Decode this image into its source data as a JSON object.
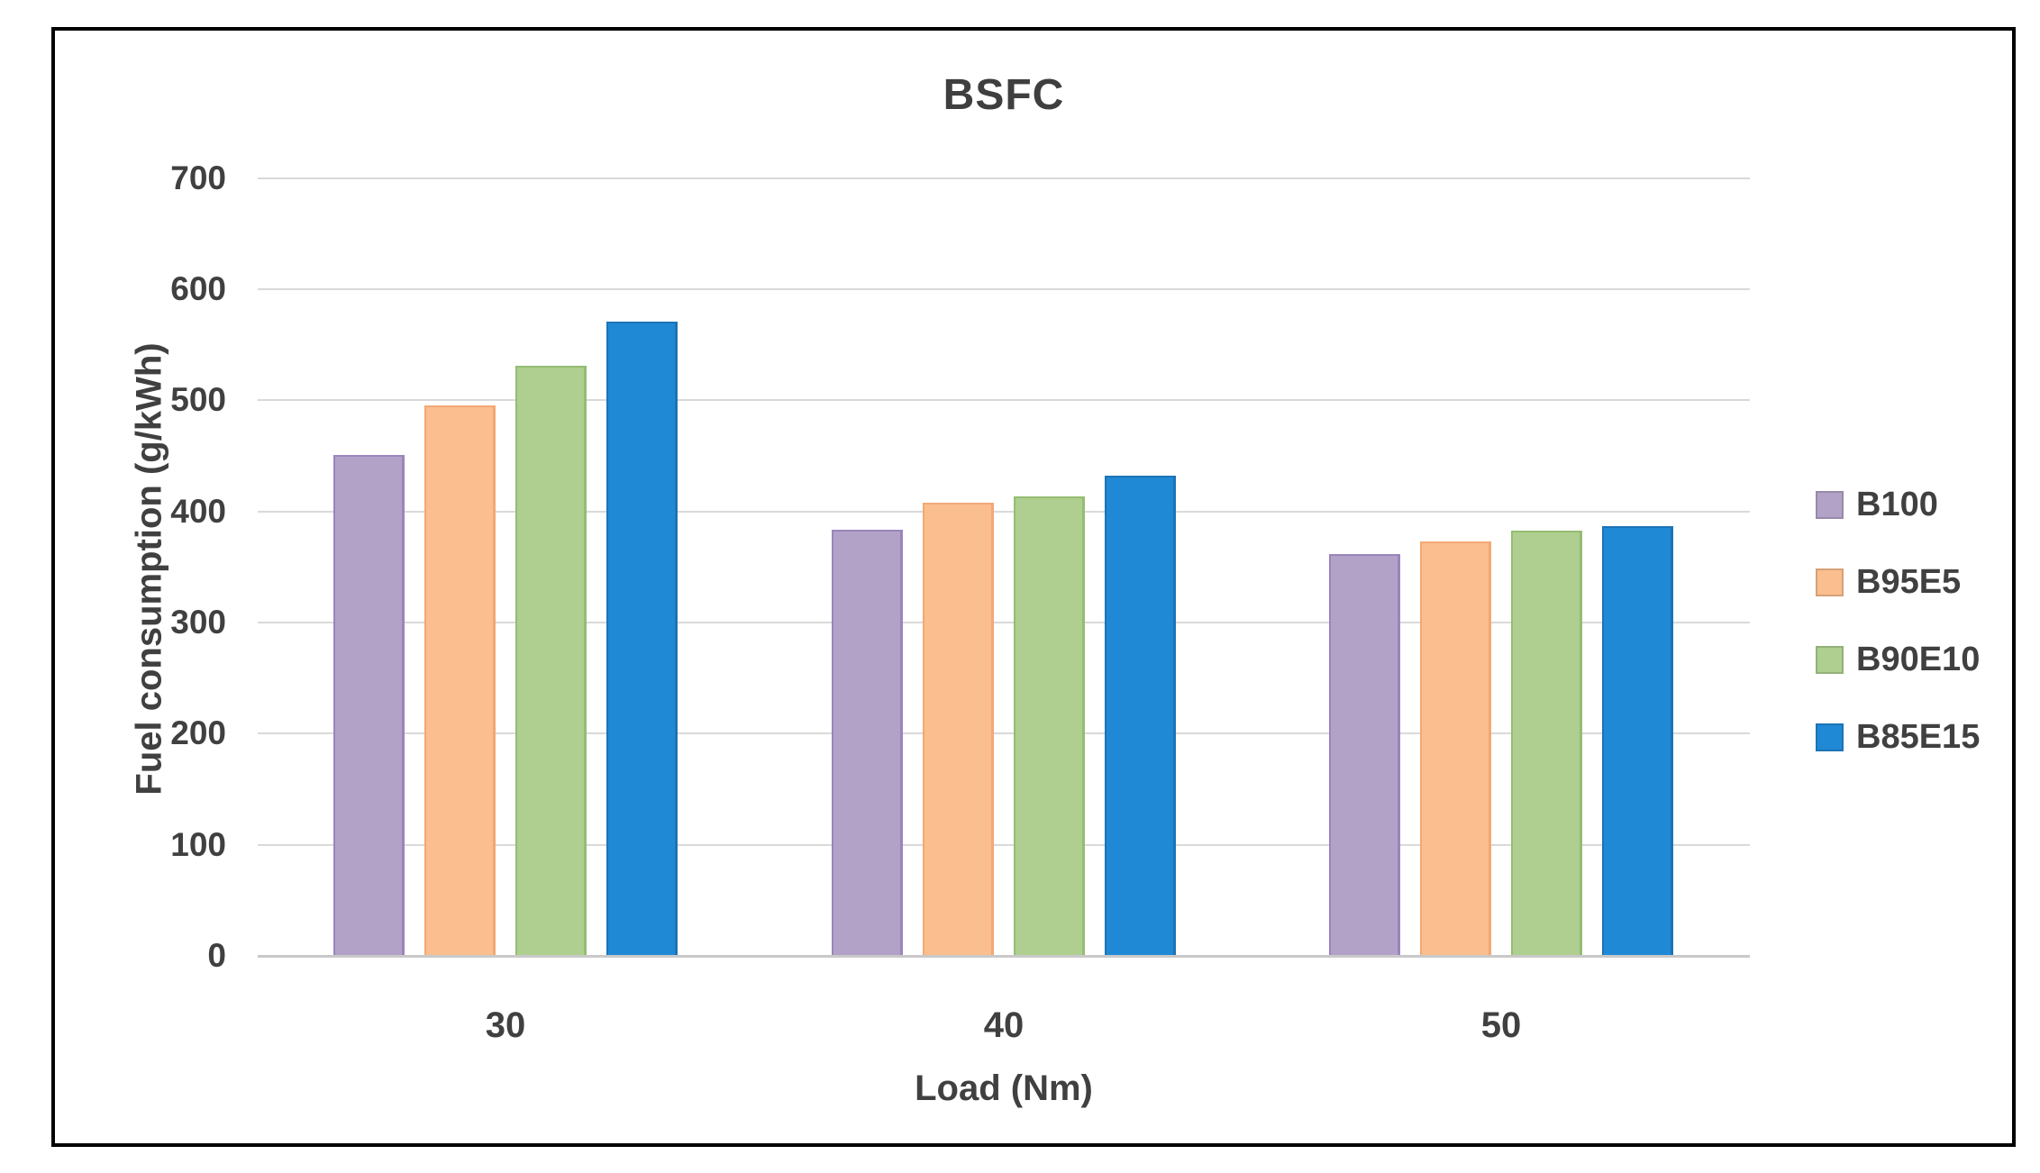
{
  "figure": {
    "background_color": "#ffffff",
    "border_color": "#000000"
  },
  "chart_data": {
    "type": "bar",
    "title": "BSFC",
    "xlabel": "Load (Nm)",
    "ylabel": "Fuel consumption (g/kWh)",
    "categories": [
      "30",
      "40",
      "50"
    ],
    "series": [
      {
        "name": "B100",
        "color": "#b3a2c7",
        "border_color": "#9a85bb",
        "values": [
          450,
          383,
          361
        ]
      },
      {
        "name": "B95E5",
        "color": "#fbbe8e",
        "border_color": "#f2a876",
        "values": [
          495,
          407,
          372
        ]
      },
      {
        "name": "B90E10",
        "color": "#aecf90",
        "border_color": "#95bd72",
        "values": [
          530,
          413,
          382
        ]
      },
      {
        "name": "B85E15",
        "color": "#2089d5",
        "border_color": "#1b74b5",
        "values": [
          570,
          431,
          386
        ]
      }
    ],
    "ylim": [
      0,
      700
    ],
    "yticks": [
      0,
      100,
      200,
      300,
      400,
      500,
      600,
      700
    ],
    "grid": true,
    "legend_position": "right",
    "gridline_color": "#d9d9d9",
    "axis_line_color": "#c9c9c9",
    "text_color": "#404040",
    "title_color": "#3f3f3f"
  }
}
